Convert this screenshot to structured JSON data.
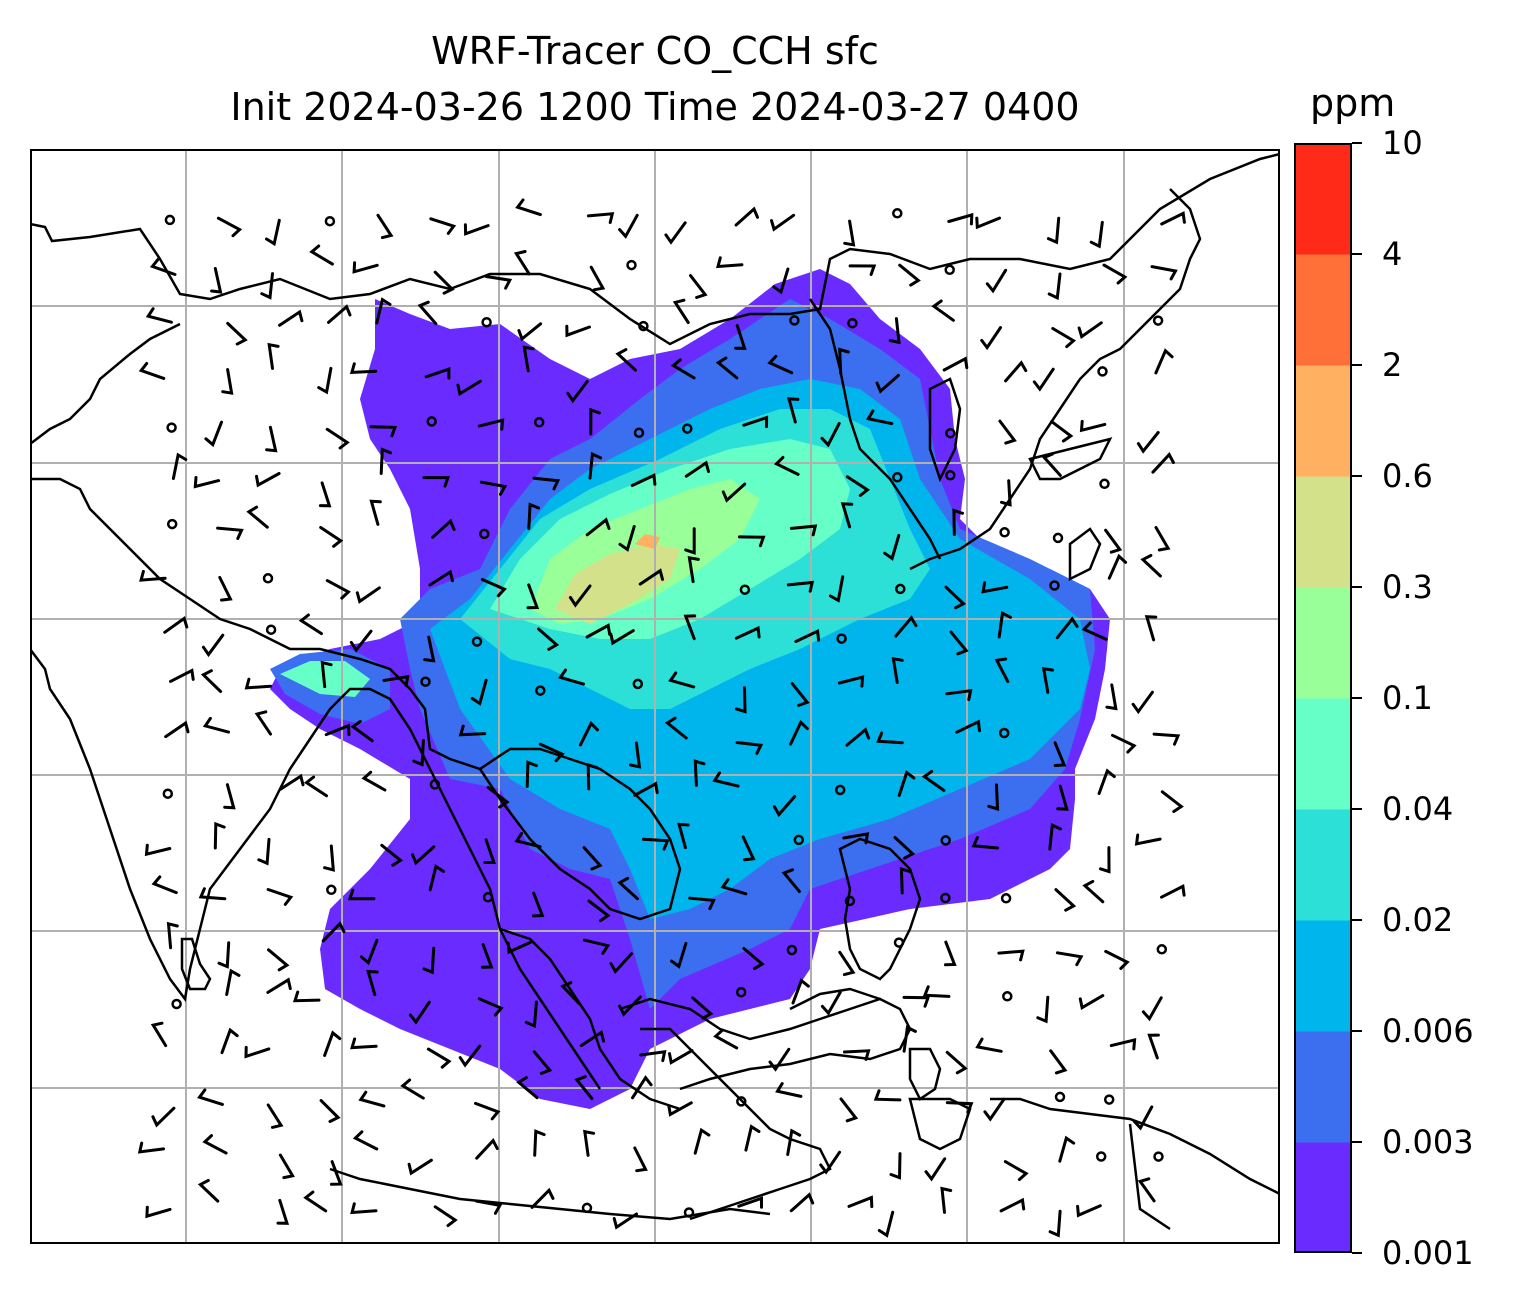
{
  "title": {
    "line1": "WRF-Tracer CO_CCH sfc",
    "line2": "Init 2024-03-26 1200 Time 2024-03-27 0400"
  },
  "colorbar": {
    "unit": "ppm",
    "levels": [
      "0.001",
      "0.003",
      "0.006",
      "0.02",
      "0.04",
      "0.1",
      "0.3",
      "0.6",
      "2",
      "4",
      "10"
    ],
    "colors": [
      "#6a2bff",
      "#3b6ff0",
      "#00b4ec",
      "#2ce0d8",
      "#66ffc8",
      "#99ff99",
      "#d2e18a",
      "#ffb060",
      "#ff7038",
      "#ff2a18"
    ]
  },
  "map": {
    "grid": "on",
    "grid_color": "#b0b0b0",
    "coastline_color": "#000000",
    "overlay": "wind-barbs"
  }
}
